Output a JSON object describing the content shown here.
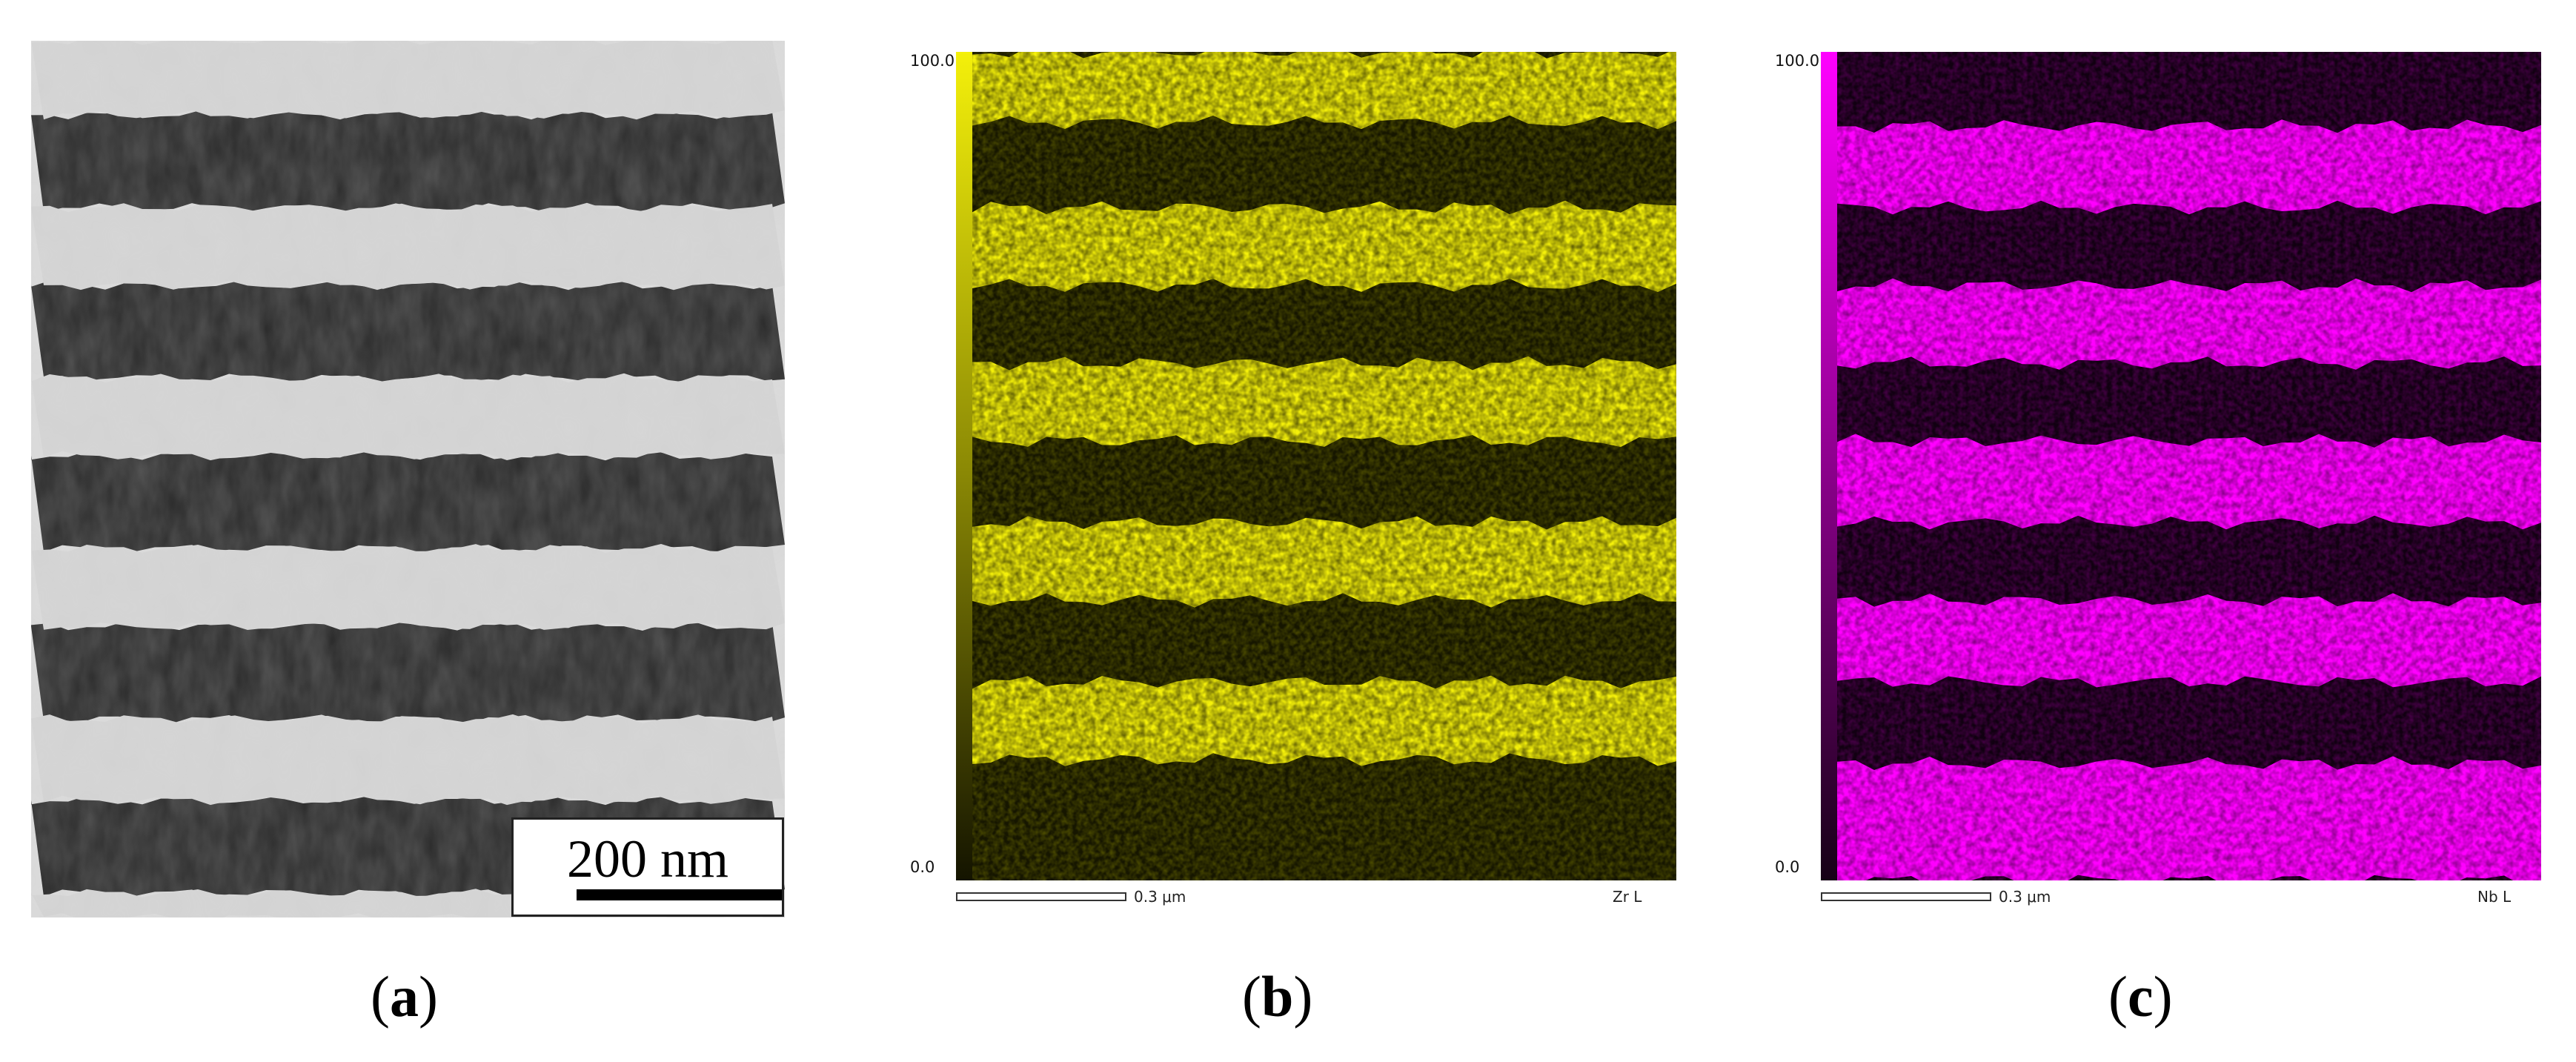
{
  "panel_a": {
    "scale_bar_label": "200 nm",
    "caption_letter": "a"
  },
  "panel_b": {
    "colorbar_max": "100.0",
    "colorbar_min": "0.0",
    "scale_bar_label": "0.3 μm",
    "element_label": "Zr L",
    "map_color": "#f4f00a",
    "caption_letter": "b"
  },
  "panel_c": {
    "colorbar_max": "100.0",
    "colorbar_min": "0.0",
    "scale_bar_label": "0.3 μm",
    "element_label": "Nb L",
    "map_color": "#ff00ff",
    "caption_letter": "c"
  }
}
